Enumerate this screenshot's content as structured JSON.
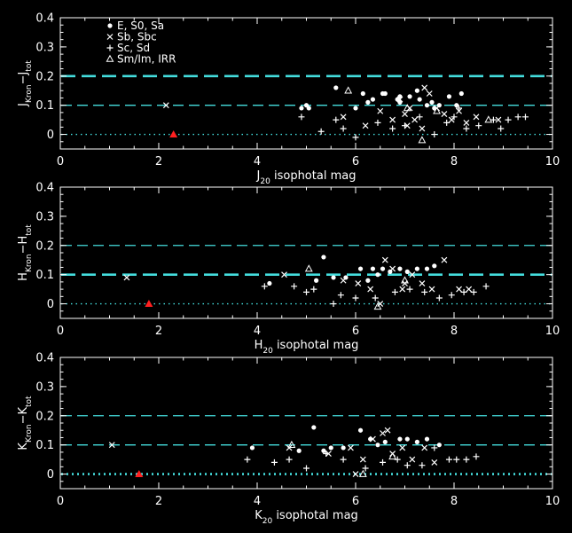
{
  "chart_data": [
    {
      "type": "scatter",
      "xlabel": {
        "pre": "J",
        "sub": "20",
        "post": " isophotal mag"
      },
      "ylabel": {
        "base1": "J",
        "sub1": "Kron",
        "mid": "−J",
        "sub2": "tot"
      },
      "xlim": [
        0,
        10
      ],
      "ylim": [
        -0.05,
        0.4
      ],
      "xticks": [
        "0",
        "2",
        "4",
        "6",
        "8",
        "10"
      ],
      "yticks": [
        "0",
        "0.1",
        "0.2",
        "0.3",
        "0.4"
      ],
      "ref_lines": [
        {
          "y": 0.2,
          "style": "dashed",
          "width": "thick"
        },
        {
          "y": 0.1,
          "style": "dashed",
          "width": "thin"
        },
        {
          "y": 0.0,
          "style": "dotted",
          "width": "thin"
        }
      ],
      "legend": [
        {
          "marker": "circle",
          "label": "E, S0, Sa"
        },
        {
          "marker": "cross",
          "label": "Sb, Sbc"
        },
        {
          "marker": "plus",
          "label": "Sc, Sd"
        },
        {
          "marker": "triangle",
          "label": "Sm/Im, IRR"
        }
      ],
      "series": [
        {
          "marker": "circle",
          "x": [
            4.9,
            5.05,
            5.6,
            6.0,
            6.25,
            6.35,
            6.55,
            6.6,
            6.85,
            6.9,
            7.1,
            7.25,
            7.3,
            7.55,
            7.6,
            7.7,
            7.9,
            8.05,
            8.15,
            6.15,
            5.0,
            6.9,
            7.45
          ],
          "y": [
            0.09,
            0.09,
            0.16,
            0.09,
            0.11,
            0.12,
            0.14,
            0.14,
            0.12,
            0.13,
            0.13,
            0.15,
            0.12,
            0.11,
            0.09,
            0.1,
            0.13,
            0.1,
            0.14,
            0.14,
            0.1,
            0.11,
            0.1
          ]
        },
        {
          "marker": "cross",
          "x": [
            2.15,
            5.75,
            6.2,
            6.5,
            6.75,
            6.9,
            7.0,
            7.1,
            7.2,
            7.4,
            7.5,
            7.65,
            7.8,
            7.95,
            8.1,
            8.25,
            8.45,
            8.9,
            7.35,
            7.05
          ],
          "y": [
            0.1,
            0.06,
            0.03,
            0.08,
            0.05,
            0.12,
            0.07,
            0.09,
            0.05,
            0.16,
            0.14,
            0.09,
            0.07,
            0.05,
            0.08,
            0.04,
            0.06,
            0.05,
            0.02,
            0.03
          ]
        },
        {
          "marker": "plus",
          "x": [
            4.9,
            5.3,
            5.6,
            5.75,
            6.0,
            6.45,
            6.75,
            7.0,
            7.3,
            7.6,
            7.85,
            8.0,
            8.25,
            8.5,
            8.8,
            8.95,
            9.1,
            9.3,
            9.45,
            8.1
          ],
          "y": [
            0.06,
            0.01,
            0.05,
            0.02,
            -0.01,
            0.04,
            0.02,
            0.03,
            0.06,
            0.0,
            0.04,
            0.06,
            0.02,
            0.03,
            0.05,
            0.02,
            0.05,
            0.06,
            0.06,
            0.09
          ]
        },
        {
          "marker": "triangle",
          "x": [
            5.85,
            7.35,
            7.05,
            7.65,
            8.7
          ],
          "y": [
            0.15,
            -0.02,
            0.09,
            0.08,
            0.05
          ]
        },
        {
          "marker": "triangle-red",
          "x": [
            2.3
          ],
          "y": [
            0.0
          ]
        }
      ]
    },
    {
      "type": "scatter",
      "xlabel": {
        "pre": "H",
        "sub": "20",
        "post": " isophotal mag"
      },
      "ylabel": {
        "base1": "H",
        "sub1": "Kron",
        "mid": "−H",
        "sub2": "tot"
      },
      "xlim": [
        0,
        10
      ],
      "ylim": [
        -0.05,
        0.4
      ],
      "xticks": [
        "0",
        "2",
        "4",
        "6",
        "8",
        "10"
      ],
      "yticks": [
        "0",
        "0.1",
        "0.2",
        "0.3",
        "0.4"
      ],
      "ref_lines": [
        {
          "y": 0.2,
          "style": "dashed",
          "width": "thin"
        },
        {
          "y": 0.1,
          "style": "dashed",
          "width": "thick"
        },
        {
          "y": 0.0,
          "style": "dotted",
          "width": "thin"
        }
      ],
      "legend": [],
      "series": [
        {
          "marker": "circle",
          "x": [
            4.25,
            5.2,
            5.35,
            5.55,
            5.8,
            6.1,
            6.35,
            6.55,
            6.7,
            6.9,
            7.05,
            7.25,
            7.45,
            7.6,
            6.25,
            6.45
          ],
          "y": [
            0.07,
            0.08,
            0.16,
            0.09,
            0.09,
            0.12,
            0.12,
            0.12,
            0.11,
            0.12,
            0.11,
            0.12,
            0.12,
            0.13,
            0.08,
            0.1
          ]
        },
        {
          "marker": "cross",
          "x": [
            1.35,
            4.55,
            5.75,
            6.05,
            6.3,
            6.6,
            6.75,
            6.95,
            7.15,
            7.35,
            7.55,
            7.8,
            8.1,
            8.3,
            6.5,
            7.0
          ],
          "y": [
            0.09,
            0.1,
            0.08,
            0.07,
            0.05,
            0.15,
            0.12,
            0.05,
            0.1,
            0.07,
            0.05,
            0.15,
            0.05,
            0.05,
            0.0,
            0.07
          ]
        },
        {
          "marker": "plus",
          "x": [
            4.15,
            4.75,
            5.15,
            5.55,
            5.7,
            6.0,
            6.4,
            6.8,
            7.1,
            7.4,
            7.7,
            7.95,
            8.2,
            8.4,
            8.65,
            5.0
          ],
          "y": [
            0.06,
            0.06,
            0.05,
            0.0,
            0.03,
            0.02,
            0.02,
            0.04,
            0.05,
            0.04,
            0.02,
            0.03,
            0.04,
            0.04,
            0.06,
            0.04
          ]
        },
        {
          "marker": "triangle",
          "x": [
            5.05,
            6.45,
            7.0
          ],
          "y": [
            0.12,
            -0.01,
            0.08
          ]
        },
        {
          "marker": "triangle-red",
          "x": [
            1.8
          ],
          "y": [
            0.0
          ]
        }
      ]
    },
    {
      "type": "scatter",
      "xlabel": {
        "pre": "K",
        "sub": "20",
        "post": " isophotal mag"
      },
      "ylabel": {
        "base1": "K",
        "sub1": "Kron",
        "mid": "−K",
        "sub2": "tot"
      },
      "xlim": [
        0,
        10
      ],
      "ylim": [
        -0.05,
        0.4
      ],
      "xticks": [
        "0",
        "2",
        "4",
        "6",
        "8",
        "10"
      ],
      "yticks": [
        "0",
        "0.1",
        "0.2",
        "0.3",
        "0.4"
      ],
      "ref_lines": [
        {
          "y": 0.2,
          "style": "dashed",
          "width": "thin"
        },
        {
          "y": 0.1,
          "style": "dashed",
          "width": "thin"
        },
        {
          "y": 0.0,
          "style": "dotted",
          "width": "thick"
        }
      ],
      "legend": [],
      "series": [
        {
          "marker": "circle",
          "x": [
            3.9,
            4.85,
            5.15,
            5.5,
            5.75,
            6.1,
            6.3,
            6.6,
            6.9,
            7.05,
            7.25,
            7.45,
            7.7,
            5.35,
            6.45
          ],
          "y": [
            0.09,
            0.08,
            0.16,
            0.09,
            0.09,
            0.15,
            0.12,
            0.11,
            0.12,
            0.12,
            0.11,
            0.12,
            0.1,
            0.08,
            0.1
          ]
        },
        {
          "marker": "cross",
          "x": [
            1.05,
            4.65,
            5.45,
            5.9,
            6.15,
            6.35,
            6.55,
            6.75,
            6.95,
            7.15,
            7.4,
            7.6,
            6.0,
            6.65
          ],
          "y": [
            0.1,
            0.09,
            0.07,
            0.09,
            0.05,
            0.12,
            0.14,
            0.07,
            0.09,
            0.05,
            0.09,
            0.04,
            0.0,
            0.15
          ]
        },
        {
          "marker": "plus",
          "x": [
            3.8,
            4.35,
            4.65,
            5.0,
            5.4,
            5.75,
            6.2,
            6.55,
            6.85,
            7.05,
            7.35,
            7.9,
            8.05,
            8.25,
            8.45,
            7.6
          ],
          "y": [
            0.05,
            0.04,
            0.05,
            0.02,
            0.07,
            0.05,
            0.02,
            0.04,
            0.05,
            0.03,
            0.03,
            0.05,
            0.05,
            0.05,
            0.06,
            0.09
          ]
        },
        {
          "marker": "triangle",
          "x": [
            4.7,
            6.15,
            6.75
          ],
          "y": [
            0.1,
            0.0,
            0.06
          ]
        },
        {
          "marker": "triangle-red",
          "x": [
            1.6
          ],
          "y": [
            0.0
          ]
        }
      ]
    }
  ]
}
